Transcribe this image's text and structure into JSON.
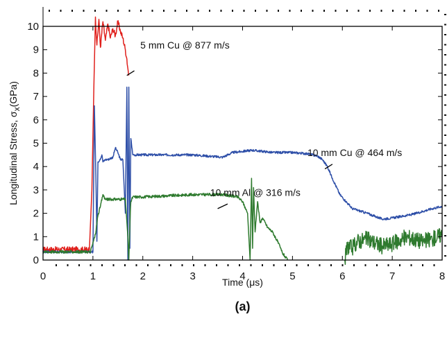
{
  "chart_data": {
    "type": "line",
    "title": "",
    "caption": "(a)",
    "xlabel_parts": [
      "Time (",
      "μ",
      "s)"
    ],
    "ylabel_parts": [
      "Longitudinal Stress, ",
      "σ",
      "x",
      "(GPa)"
    ],
    "xlim": [
      0,
      8
    ],
    "ylim": [
      0,
      10
    ],
    "x_ticks": [
      0,
      1,
      2,
      3,
      4,
      5,
      6,
      7,
      8
    ],
    "x_tick_labels": [
      "0",
      "1",
      "2",
      "3",
      "4",
      "5",
      "6",
      "7",
      "8"
    ],
    "y_ticks": [
      0,
      1,
      2,
      3,
      4,
      5,
      6,
      7,
      8,
      9,
      10
    ],
    "y_tick_labels": [
      "0",
      "1",
      "2",
      "3",
      "4",
      "5",
      "6",
      "7",
      "8",
      "9",
      "10"
    ],
    "grid": false,
    "legend": "none",
    "series": [
      {
        "label": "5 mm Cu @ 877 m/s",
        "color": "#e0201c",
        "noise": 0.12,
        "x": [
          0.0,
          0.93,
          0.98,
          1.02,
          1.05,
          1.08,
          1.12,
          1.15,
          1.2,
          1.25,
          1.3,
          1.35,
          1.4,
          1.45,
          1.5,
          1.55,
          1.6,
          1.65,
          1.68,
          1.7,
          1.72
        ],
        "y": [
          0.45,
          0.45,
          3.0,
          7.5,
          10.4,
          9.2,
          10.3,
          9.1,
          10.2,
          9.4,
          10.1,
          9.5,
          9.9,
          9.6,
          10.2,
          9.8,
          9.5,
          9.0,
          8.6,
          8.2,
          7.9
        ]
      },
      {
        "label": "10 mm Cu @ 464 m/s",
        "color": "#2e4fa8",
        "noise": 0.05,
        "x": [
          0.0,
          0.9,
          1.0,
          1.03,
          1.06,
          1.08,
          1.1,
          1.14,
          1.18,
          1.2,
          1.25,
          1.3,
          1.4,
          1.45,
          1.5,
          1.55,
          1.6,
          1.65,
          1.68,
          1.7,
          1.72,
          1.74,
          1.76,
          1.8,
          2.0,
          2.5,
          3.0,
          3.3,
          3.6,
          3.8,
          4.2,
          4.6,
          5.0,
          5.3,
          5.5,
          5.6,
          5.7,
          5.8,
          5.95,
          6.2,
          6.5,
          6.8,
          7.0,
          7.4,
          7.8,
          8.0
        ],
        "y": [
          0.35,
          0.35,
          0.35,
          6.6,
          3.5,
          0.8,
          4.2,
          4.3,
          4.5,
          4.2,
          4.3,
          4.3,
          4.4,
          4.8,
          4.6,
          4.3,
          4.3,
          2.0,
          7.4,
          0.0,
          7.4,
          0.5,
          5.2,
          4.5,
          4.5,
          4.5,
          4.5,
          4.45,
          4.4,
          4.6,
          4.7,
          4.6,
          4.6,
          4.55,
          4.45,
          4.3,
          4.0,
          3.5,
          2.8,
          2.2,
          2.0,
          1.75,
          1.8,
          1.95,
          2.2,
          2.3
        ]
      },
      {
        "label": "10 mm Al @ 316 m/s",
        "color": "#2e7a2e",
        "noise": 0.06,
        "x": [
          0.0,
          0.95,
          1.05,
          1.1,
          1.15,
          1.2,
          1.25,
          1.5,
          1.65,
          1.7,
          1.72,
          1.74,
          1.76,
          1.8,
          2.0,
          2.5,
          3.0,
          3.3,
          3.6,
          3.9,
          4.0,
          4.1,
          4.15,
          4.18,
          4.2,
          4.22,
          4.25,
          4.3,
          4.35,
          4.4,
          4.5,
          4.6,
          4.7,
          4.8,
          4.9
        ],
        "y": [
          0.35,
          0.35,
          1.1,
          1.9,
          2.3,
          2.8,
          2.6,
          2.6,
          2.6,
          1.0,
          0.0,
          1.5,
          2.5,
          2.7,
          2.7,
          2.75,
          2.8,
          2.8,
          2.8,
          2.7,
          2.5,
          2.0,
          0.0,
          3.5,
          0.5,
          3.1,
          1.2,
          2.5,
          1.6,
          1.8,
          1.4,
          1.2,
          0.8,
          0.3,
          0.0
        ]
      },
      {
        "label": "",
        "color": "#2e7a2e",
        "noise": 0.35,
        "x": [
          6.05,
          6.1,
          6.2,
          6.3,
          6.5,
          6.8,
          7.0,
          7.3,
          7.6,
          7.8,
          8.0
        ],
        "y": [
          0.0,
          0.6,
          0.5,
          0.8,
          0.9,
          0.6,
          0.7,
          1.0,
          0.8,
          0.9,
          1.1
        ]
      }
    ],
    "annotations": [
      {
        "text": "5 mm Cu @ 877 m/s",
        "x": 1.95,
        "y": 9.05,
        "arrow_from": [
          1.83,
          8.1
        ],
        "arrow_to": [
          1.68,
          7.9
        ]
      },
      {
        "text": "10 mm Cu @ 464 m/s",
        "x": 5.3,
        "y": 4.45,
        "arrow_from": [
          5.8,
          4.1
        ],
        "arrow_to": [
          5.65,
          3.9
        ]
      },
      {
        "text": "10 mm Al @ 316 m/s",
        "x": 3.35,
        "y": 2.75,
        "arrow_from": [
          3.7,
          2.4
        ],
        "arrow_to": [
          3.5,
          2.2
        ]
      }
    ]
  }
}
